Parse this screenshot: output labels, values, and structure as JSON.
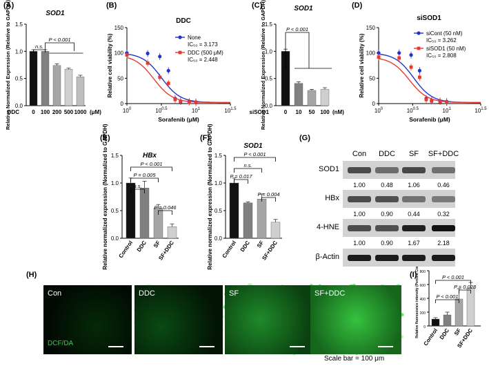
{
  "panel_labels": [
    "(A)",
    "(B)",
    "(C)",
    "(D)",
    "(E)",
    "(F)",
    "(G)",
    "(H)",
    "(I)"
  ],
  "scale_bar_text": "Scale bar = 100 μm",
  "micro_labels": [
    "Con",
    "DDC",
    "SF",
    "SF+DDC"
  ],
  "micro_stain": "DCF/DA",
  "colors": {
    "blue": "#2233cc",
    "red": "#e8392e",
    "black": "#111111",
    "bar_dark": "#808080",
    "bar_mid": "#a6a6a6",
    "bar_light": "#cfcfcf",
    "micro_green": "#1aa82a"
  },
  "chart_data": [
    {
      "id": "A",
      "type": "bar",
      "title": "SOD1",
      "ylabel": "Relative Normalized Expression (Relative to GAPDH)",
      "xlabel_prefix": "DDC",
      "xunit": "(μM)",
      "categories": [
        "0",
        "100",
        "200",
        "500",
        "1000"
      ],
      "values": [
        1.0,
        1.0,
        0.74,
        0.67,
        0.53
      ],
      "errors": [
        0.03,
        0.03,
        0.03,
        0.02,
        0.03
      ],
      "ylim": [
        0,
        1.5
      ],
      "yticks": [
        "0.0",
        "0.5",
        "1.0",
        "1.5"
      ],
      "annotations": [
        "n.s.",
        "P < 0.001"
      ]
    },
    {
      "id": "B",
      "type": "line",
      "title": "DDC",
      "ylabel": "Relative cell viability (%)",
      "xlabel": "Sorafenib (μM)",
      "xticks": [
        "10^0",
        "10^0.5",
        "10^1",
        "10^1.5"
      ],
      "yticks": [
        "0",
        "50",
        "100",
        "150"
      ],
      "ylim": [
        0,
        150
      ],
      "legend_position": "top-right",
      "series": [
        {
          "name": "None",
          "ic50_text": "IC₅₀ = 3.173",
          "x": [
            1,
            2,
            3,
            4,
            5,
            6,
            8,
            10
          ],
          "y": [
            100,
            99,
            93,
            65,
            10,
            5,
            4,
            3
          ],
          "color": "#2233cc"
        },
        {
          "name": "DDC (500 μM)",
          "ic50_text": "IC₅₀ = 2.448",
          "x": [
            1,
            2,
            3,
            4,
            5,
            6,
            8,
            10
          ],
          "y": [
            96,
            80,
            52,
            40,
            8,
            4,
            3,
            2
          ],
          "color": "#e8392e"
        }
      ]
    },
    {
      "id": "C",
      "type": "bar",
      "title": "SOD1",
      "ylabel": "Relative Normalized Expression (Relative to GAPDH)",
      "xlabel_prefix": "siSOD1",
      "xunit": "(nM)",
      "categories": [
        "0",
        "10",
        "50",
        "100"
      ],
      "values": [
        1.0,
        0.41,
        0.28,
        0.3
      ],
      "errors": [
        0.04,
        0.03,
        0.02,
        0.03
      ],
      "ylim": [
        0,
        1.5
      ],
      "yticks": [
        "0.0",
        "0.5",
        "1.0",
        "1.5"
      ],
      "annotations": [
        "P < 0.001"
      ]
    },
    {
      "id": "D",
      "type": "line",
      "title": "siSOD1",
      "ylabel": "Relative cell viability (%)",
      "xlabel": "Sorafenib (μM)",
      "xticks": [
        "10^0",
        "10^0.5",
        "10^1",
        "10^1.5"
      ],
      "yticks": [
        "0",
        "50",
        "100",
        "150"
      ],
      "ylim": [
        0,
        150
      ],
      "legend_position": "top-right",
      "series": [
        {
          "name": "siCont (50 nM)",
          "ic50_text": "IC₅₀ = 3.262",
          "x": [
            1,
            2,
            3,
            4,
            5,
            6,
            8,
            10
          ],
          "y": [
            100,
            100,
            96,
            65,
            10,
            6,
            5,
            4
          ],
          "color": "#2233cc"
        },
        {
          "name": "siSOD1 (50 nM)",
          "ic50_text": "IC₅₀ = 2.808",
          "x": [
            1,
            2,
            3,
            4,
            5,
            6,
            8,
            10
          ],
          "y": [
            92,
            90,
            72,
            52,
            8,
            5,
            4,
            3
          ],
          "color": "#e8392e"
        }
      ]
    },
    {
      "id": "E",
      "type": "bar",
      "title": "HBx",
      "ylabel": "Relative normalized expression (Normalized to GAPDH)",
      "categories": [
        "Control",
        "DDC",
        "SF",
        "SF+DDC"
      ],
      "values": [
        1.0,
        0.91,
        0.55,
        0.21
      ],
      "errors": [
        0.09,
        0.12,
        0.06,
        0.05
      ],
      "ylim": [
        0,
        1.5
      ],
      "yticks": [
        "0.0",
        "0.5",
        "1.0",
        "1.5"
      ],
      "annotations": [
        "P < 0.001",
        "P = 0.005",
        "n.s.",
        "P = 0.046"
      ]
    },
    {
      "id": "F",
      "type": "bar",
      "title": "SOD1",
      "ylabel": "Relative normalized expression (Normalized to GAPDH)",
      "categories": [
        "Control",
        "DDC",
        "SF",
        "SF+DDC"
      ],
      "values": [
        1.0,
        0.64,
        0.71,
        0.29
      ],
      "errors": [
        0.09,
        0.02,
        0.09,
        0.05
      ],
      "ylim": [
        0,
        1.5
      ],
      "yticks": [
        "0.0",
        "0.5",
        "1.0",
        "1.5"
      ],
      "annotations": [
        "P < 0.001",
        "n.s.",
        "P = 0.017",
        "P = 0.004"
      ]
    },
    {
      "id": "I",
      "type": "bar",
      "ylabel": "Relative fluorescence intensity (Percent Control)",
      "categories": [
        "Control",
        "DDC",
        "SF",
        "SF+DDC"
      ],
      "values": [
        100,
        160,
        390,
        550
      ],
      "errors": [
        20,
        40,
        150,
        80
      ],
      "ylim": [
        0,
        800
      ],
      "yticks": [
        "0",
        "200",
        "400",
        "600",
        "800"
      ],
      "annotations": [
        "P < 0.001",
        "P < 0.001",
        "P = 0.028"
      ]
    }
  ],
  "western_blot": {
    "lanes": [
      "Con",
      "DDC",
      "SF",
      "SF+DDC"
    ],
    "rows": [
      {
        "label": "SOD1",
        "values": [
          "1.00",
          "0.48",
          "1.06",
          "0.46"
        ]
      },
      {
        "label": "HBx",
        "values": [
          "1.00",
          "0.90",
          "0.44",
          "0.32"
        ]
      },
      {
        "label": "4-HNE",
        "values": [
          "1.00",
          "0.90",
          "1.67",
          "2.18"
        ]
      },
      {
        "label": "β-Actin",
        "values": []
      }
    ]
  }
}
